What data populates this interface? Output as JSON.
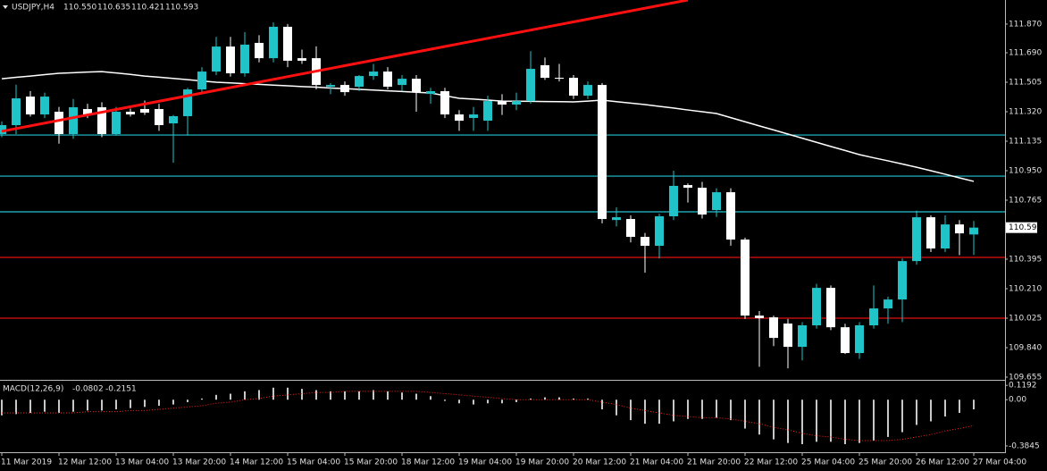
{
  "chart_data": [
    {
      "type": "candlestick",
      "title": "USDJPY,H4",
      "title_values": [
        "110.550",
        "110.635",
        "110.421",
        "110.593"
      ],
      "categories": [
        "11 Mar 2019",
        null,
        null,
        null,
        "12 Mar 12:00",
        null,
        null,
        null,
        "13 Mar 04:00",
        null,
        null,
        null,
        "13 Mar 20:00",
        null,
        null,
        null,
        "14 Mar 12:00",
        null,
        null,
        null,
        "15 Mar 04:00",
        null,
        null,
        null,
        "15 Mar 20:00",
        null,
        null,
        null,
        "18 Mar 12:00",
        null,
        null,
        null,
        "19 Mar 04:00",
        null,
        null,
        null,
        "19 Mar 20:00",
        null,
        null,
        null,
        "20 Mar 12:00",
        null,
        null,
        null,
        "21 Mar 04:00",
        null,
        null,
        null,
        "21 Mar 20:00",
        null,
        null,
        null,
        "22 Mar 12:00",
        null,
        null,
        null,
        "25 Mar 04:00",
        null,
        null,
        null,
        "25 Mar 20:00",
        null,
        null,
        null,
        "26 Mar 12:00",
        null,
        null,
        null,
        "27 Mar 04:00"
      ],
      "open": [
        111.18,
        111.236,
        111.415,
        111.303,
        111.32,
        111.18,
        111.337,
        111.348,
        111.18,
        111.32,
        111.337,
        111.337,
        111.247,
        111.292,
        111.46,
        111.572,
        111.729,
        111.561,
        111.752,
        111.656,
        111.853,
        111.656,
        111.656,
        111.477,
        111.488,
        111.477,
        111.544,
        111.572,
        111.488,
        111.527,
        111.432,
        111.449,
        111.303,
        111.281,
        111.264,
        111.387,
        111.365,
        111.387,
        111.612,
        111.533,
        111.533,
        111.421,
        111.488,
        110.641,
        110.647,
        110.535,
        110.479,
        110.664,
        110.86,
        110.843,
        110.703,
        110.815,
        110.518,
        110.041,
        110.03,
        109.991,
        109.845,
        109.98,
        110.215,
        109.968,
        109.806,
        109.98,
        110.086,
        110.142,
        110.383,
        110.658,
        110.462,
        110.613,
        110.55
      ],
      "high": [
        111.26,
        111.49,
        111.45,
        111.44,
        111.35,
        111.4,
        111.37,
        111.38,
        111.35,
        111.34,
        111.39,
        111.37,
        111.3,
        111.47,
        111.6,
        111.79,
        111.79,
        111.82,
        111.8,
        111.88,
        111.87,
        111.71,
        111.73,
        111.5,
        111.51,
        111.55,
        111.62,
        111.6,
        111.55,
        111.55,
        111.47,
        111.47,
        111.33,
        111.35,
        111.42,
        111.43,
        111.44,
        111.7,
        111.66,
        111.62,
        111.55,
        111.51,
        111.5,
        110.72,
        110.67,
        110.56,
        110.68,
        110.95,
        110.87,
        110.88,
        110.84,
        110.84,
        110.53,
        110.07,
        110.04,
        110.02,
        110.0,
        110.24,
        110.23,
        109.99,
        110.0,
        110.23,
        110.16,
        110.4,
        110.7,
        110.67,
        110.67,
        110.64,
        110.635
      ],
      "low": [
        111.16,
        111.18,
        111.29,
        111.28,
        111.12,
        111.15,
        111.28,
        111.16,
        111.17,
        111.29,
        111.3,
        111.2,
        111.0,
        111.17,
        111.44,
        111.55,
        111.54,
        111.54,
        111.63,
        111.63,
        111.6,
        111.62,
        111.46,
        111.43,
        111.42,
        111.45,
        111.52,
        111.46,
        111.45,
        111.32,
        111.37,
        111.28,
        111.2,
        111.2,
        111.2,
        111.3,
        111.33,
        111.37,
        111.52,
        111.51,
        111.4,
        111.4,
        110.62,
        110.6,
        110.5,
        110.31,
        110.4,
        110.64,
        110.75,
        110.65,
        110.66,
        110.48,
        110.02,
        109.72,
        109.85,
        109.71,
        109.76,
        109.96,
        109.95,
        109.8,
        109.77,
        109.96,
        109.99,
        110.0,
        110.36,
        110.44,
        110.44,
        110.42,
        110.421
      ],
      "close": [
        111.236,
        111.404,
        111.303,
        111.415,
        111.18,
        111.348,
        111.303,
        111.18,
        111.32,
        111.303,
        111.314,
        111.236,
        111.292,
        111.46,
        111.572,
        111.729,
        111.561,
        111.741,
        111.656,
        111.853,
        111.64,
        111.64,
        111.488,
        111.488,
        111.443,
        111.544,
        111.572,
        111.477,
        111.527,
        111.443,
        111.449,
        111.303,
        111.264,
        111.303,
        111.387,
        111.365,
        111.387,
        111.589,
        111.533,
        111.527,
        111.421,
        111.488,
        110.647,
        110.658,
        110.535,
        110.479,
        110.664,
        110.855,
        110.843,
        110.675,
        110.815,
        110.518,
        110.041,
        110.025,
        109.901,
        109.845,
        109.98,
        110.215,
        109.968,
        109.806,
        109.98,
        110.086,
        110.142,
        110.383,
        110.658,
        110.462,
        110.613,
        110.557,
        110.593
      ],
      "up_color": "#20c4c8",
      "down_color": "#ffffff",
      "ma": {
        "color": "#ffffff",
        "values": [
          111.527,
          111.536,
          111.544,
          111.553,
          111.561,
          111.565,
          111.569,
          111.572,
          111.563,
          111.554,
          111.544,
          111.537,
          111.529,
          111.521,
          111.513,
          111.505,
          111.501,
          111.496,
          111.492,
          111.487,
          111.483,
          111.478,
          111.474,
          111.469,
          111.465,
          111.46,
          111.456,
          111.451,
          111.447,
          111.442,
          111.438,
          111.421,
          111.404,
          111.399,
          111.393,
          111.387,
          111.386,
          111.385,
          111.384,
          111.383,
          111.382,
          111.387,
          111.393,
          111.383,
          111.374,
          111.365,
          111.354,
          111.343,
          111.331,
          111.32,
          111.309,
          111.283,
          111.257,
          111.231,
          111.206,
          111.18,
          111.154,
          111.128,
          111.102,
          111.077,
          111.051,
          111.031,
          111.012,
          110.992,
          110.972,
          110.95,
          110.928,
          110.905,
          110.883
        ]
      },
      "levels": [
        {
          "value": 111.174,
          "color": "#22c4d4"
        },
        {
          "value": 110.916,
          "color": "#22c4d4"
        },
        {
          "value": 110.692,
          "color": "#22c4d4"
        },
        {
          "value": 110.406,
          "color": "#e01010"
        },
        {
          "value": 110.025,
          "color": "#e01010"
        }
      ],
      "trendline": {
        "x": [
          0,
          48
        ],
        "values": [
          111.197,
          112.021
        ],
        "color": "#ff1010"
      },
      "ylim": [
        109.638,
        112.021
      ],
      "yticks": [
        {
          "value": 111.87,
          "label": "111.870"
        },
        {
          "value": 111.69,
          "label": "111.690"
        },
        111.505,
        {
          "value": 111.32,
          "label": "111.320"
        },
        111.135,
        {
          "value": 110.95,
          "label": "110.950"
        },
        110.765,
        110.395,
        {
          "value": 110.21,
          "label": "110.210"
        },
        110.025,
        {
          "value": 109.84,
          "label": "109.840"
        },
        109.655
      ]
    },
    {
      "type": "macd",
      "title": "MACD(12,26,9)",
      "histogram": [
        -0.13,
        -0.12,
        -0.11,
        -0.1,
        -0.11,
        -0.1,
        -0.09,
        -0.09,
        -0.08,
        -0.07,
        -0.06,
        -0.05,
        -0.04,
        -0.02,
        0.01,
        0.04,
        0.05,
        0.07,
        0.08,
        0.1,
        0.1,
        0.09,
        0.08,
        0.07,
        0.07,
        0.07,
        0.08,
        0.07,
        0.06,
        0.05,
        0.03,
        -0.01,
        -0.03,
        -0.04,
        -0.03,
        -0.03,
        -0.02,
        0.01,
        0.02,
        0.02,
        0.01,
        0.01,
        -0.08,
        -0.13,
        -0.17,
        -0.2,
        -0.2,
        -0.18,
        -0.16,
        -0.16,
        -0.15,
        -0.17,
        -0.24,
        -0.29,
        -0.33,
        -0.36,
        -0.37,
        -0.35,
        -0.35,
        -0.37,
        -0.36,
        -0.34,
        -0.31,
        -0.27,
        -0.21,
        -0.18,
        -0.14,
        -0.11,
        -0.0802
      ],
      "signal": [
        -0.11,
        -0.11,
        -0.11,
        -0.11,
        -0.11,
        -0.11,
        -0.1,
        -0.1,
        -0.1,
        -0.09,
        -0.09,
        -0.08,
        -0.07,
        -0.06,
        -0.05,
        -0.03,
        -0.02,
        0.0,
        0.01,
        0.03,
        0.04,
        0.05,
        0.06,
        0.06,
        0.07,
        0.07,
        0.07,
        0.07,
        0.07,
        0.07,
        0.06,
        0.05,
        0.04,
        0.03,
        0.02,
        0.01,
        0.0,
        0.0,
        0.0,
        0.0,
        0.0,
        0.0,
        -0.02,
        -0.04,
        -0.07,
        -0.09,
        -0.11,
        -0.13,
        -0.14,
        -0.15,
        -0.15,
        -0.16,
        -0.18,
        -0.2,
        -0.23,
        -0.25,
        -0.28,
        -0.3,
        -0.31,
        -0.33,
        -0.34,
        -0.34,
        -0.34,
        -0.33,
        -0.31,
        -0.29,
        -0.26,
        -0.24,
        -0.2151
      ],
      "histogram_color": "#c8c8c8",
      "signal_color": "#ff2020",
      "ylim": [
        -0.437,
        0.143
      ],
      "yticks": [
        0.1192,
        {
          "value": 0,
          "label": "0.00"
        },
        -0.3845
      ]
    }
  ]
}
